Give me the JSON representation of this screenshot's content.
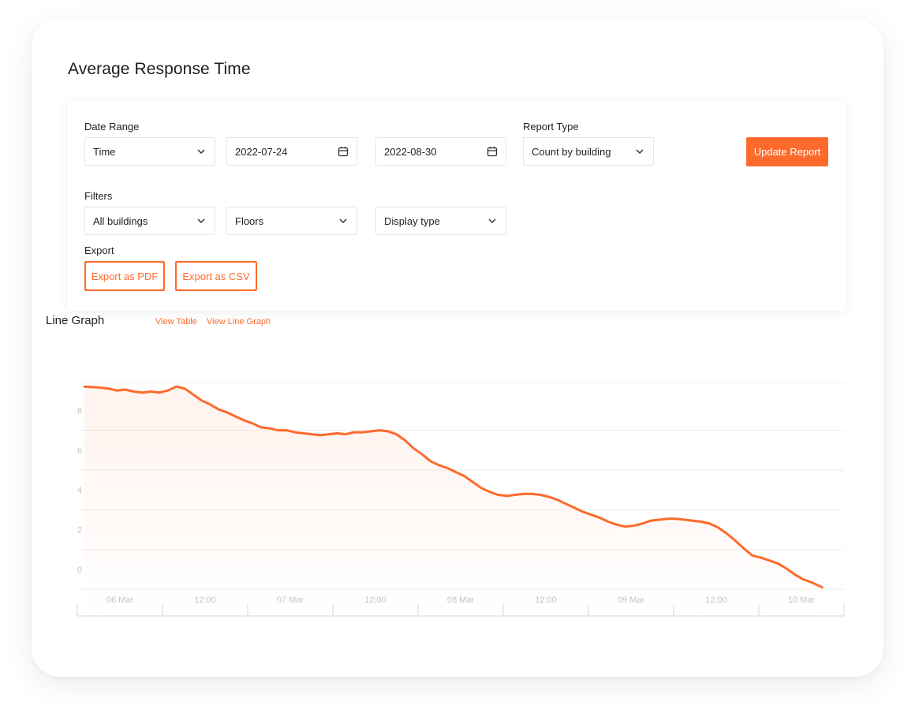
{
  "title": "Average Response Time",
  "filters_panel": {
    "date_range_label": "Date Range",
    "date_range_select": "Time",
    "start_date": "2022-07-24",
    "end_date": "2022-08-30",
    "report_type_label": "Report Type",
    "report_type_select": "Count by building",
    "update_button": "Update Report",
    "filters_label": "Filters",
    "building_select": "All buildings",
    "floors_select": "Floors",
    "display_select": "Display type",
    "export_label": "Export",
    "export_pdf": "Export as PDF",
    "export_csv": "Export as CSV"
  },
  "graph_header": {
    "title": "Line Graph",
    "view_table": "View Table",
    "view_line_graph": "View Line Graph"
  },
  "colors": {
    "accent": "#fd6a2b",
    "grid": "#eeeeee",
    "tick_text": "#c4c4c4"
  },
  "chart_data": {
    "type": "line",
    "y_ticks": [
      "8",
      "6",
      "4",
      "2",
      "0"
    ],
    "ylim": [
      -1,
      10
    ],
    "x_ticks": [
      "06 Mar",
      "12:00",
      "07 Mar",
      "12:00",
      "08 Mar",
      "12:00",
      "09 Mar",
      "12:00",
      "10 Mar"
    ],
    "x_range_hours": [
      0,
      105
    ],
    "grid": true,
    "series": [
      {
        "points": [
          [
            -1,
            9.2
          ],
          [
            1.2,
            9.15
          ],
          [
            2.4,
            9.1
          ],
          [
            3.6,
            9.0
          ],
          [
            4.8,
            9.05
          ],
          [
            6,
            8.95
          ],
          [
            7.2,
            8.9
          ],
          [
            8.4,
            8.95
          ],
          [
            9.6,
            8.9
          ],
          [
            10.8,
            9.0
          ],
          [
            12,
            9.2
          ],
          [
            13.2,
            9.1
          ],
          [
            14.4,
            8.8
          ],
          [
            15.6,
            8.5
          ],
          [
            16.8,
            8.3
          ],
          [
            18,
            8.05
          ],
          [
            19.2,
            7.9
          ],
          [
            20.4,
            7.7
          ],
          [
            21.6,
            7.5
          ],
          [
            22.8,
            7.35
          ],
          [
            24,
            7.15
          ],
          [
            25.2,
            7.1
          ],
          [
            26.4,
            7.0
          ],
          [
            27.6,
            7.0
          ],
          [
            28.8,
            6.9
          ],
          [
            30,
            6.85
          ],
          [
            31.2,
            6.8
          ],
          [
            32.4,
            6.75
          ],
          [
            33.6,
            6.8
          ],
          [
            34.8,
            6.85
          ],
          [
            36,
            6.8
          ],
          [
            37.2,
            6.9
          ],
          [
            38.4,
            6.9
          ],
          [
            39.6,
            6.95
          ],
          [
            40.8,
            7.0
          ],
          [
            42,
            6.95
          ],
          [
            43.2,
            6.8
          ],
          [
            44.4,
            6.5
          ],
          [
            45.6,
            6.1
          ],
          [
            46.8,
            5.8
          ],
          [
            48,
            5.45
          ],
          [
            49.2,
            5.25
          ],
          [
            50.4,
            5.1
          ],
          [
            51.6,
            4.9
          ],
          [
            52.8,
            4.7
          ],
          [
            54,
            4.4
          ],
          [
            55.2,
            4.1
          ],
          [
            56.4,
            3.9
          ],
          [
            57.6,
            3.75
          ],
          [
            58.8,
            3.7
          ],
          [
            60,
            3.75
          ],
          [
            61.2,
            3.8
          ],
          [
            62.4,
            3.8
          ],
          [
            63.6,
            3.75
          ],
          [
            64.8,
            3.65
          ],
          [
            66,
            3.5
          ],
          [
            67.2,
            3.3
          ],
          [
            68.4,
            3.1
          ],
          [
            69.6,
            2.9
          ],
          [
            70.8,
            2.75
          ],
          [
            72,
            2.6
          ],
          [
            73.2,
            2.4
          ],
          [
            74.4,
            2.25
          ],
          [
            75.6,
            2.15
          ],
          [
            76.8,
            2.2
          ],
          [
            78,
            2.3
          ],
          [
            79.2,
            2.45
          ],
          [
            80.4,
            2.5
          ],
          [
            81.6,
            2.55
          ],
          [
            82.8,
            2.55
          ],
          [
            84,
            2.5
          ],
          [
            85.2,
            2.45
          ],
          [
            86.4,
            2.4
          ],
          [
            87.6,
            2.3
          ],
          [
            88.8,
            2.1
          ],
          [
            90,
            1.8
          ],
          [
            91.2,
            1.45
          ],
          [
            92.4,
            1.05
          ],
          [
            93.6,
            0.7
          ],
          [
            94.8,
            0.6
          ],
          [
            96,
            0.45
          ],
          [
            97.2,
            0.3
          ],
          [
            98.4,
            0.05
          ],
          [
            99.6,
            -0.25
          ],
          [
            100.8,
            -0.5
          ],
          [
            102,
            -0.65
          ],
          [
            103.5,
            -0.9
          ]
        ]
      }
    ]
  }
}
